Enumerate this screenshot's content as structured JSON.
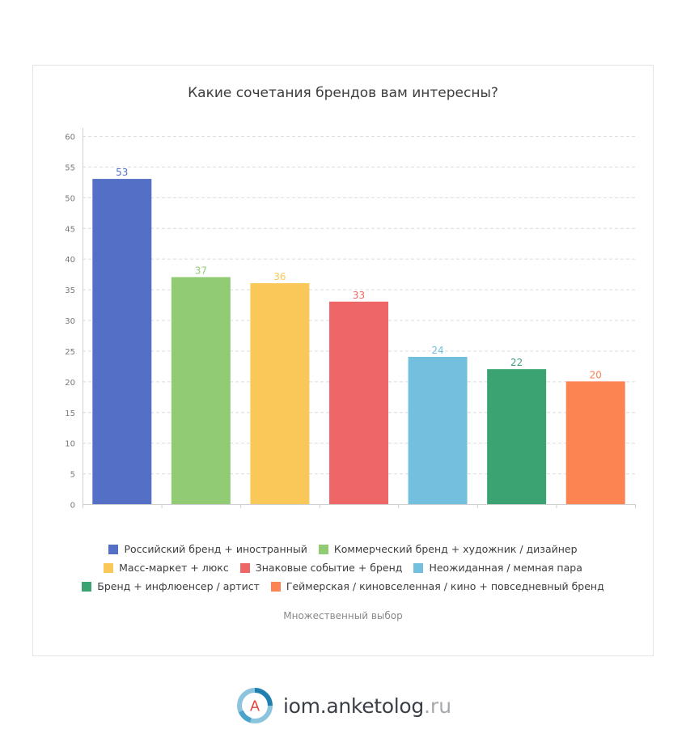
{
  "chart_data": {
    "type": "bar",
    "title": "Какие сочетания брендов вам интересны?",
    "note": "Множественный выбор",
    "ylim": [
      0,
      60
    ],
    "yticks": [
      "0",
      "5",
      "10",
      "15",
      "20",
      "25",
      "30",
      "35",
      "40",
      "45",
      "50",
      "55",
      "60"
    ],
    "grid": true,
    "legend_position": "bottom",
    "series": [
      {
        "name": "Российский бренд + иностранный",
        "value": 53,
        "color": "#5470c6"
      },
      {
        "name": "Коммерческий бренд + художник / дизайнер",
        "value": 37,
        "color": "#91cc75"
      },
      {
        "name": "Масс-маркет + люкс",
        "value": 36,
        "color": "#fac858"
      },
      {
        "name": "Знаковые событие + бренд",
        "value": 33,
        "color": "#ee6666"
      },
      {
        "name": "Неожиданная / мемная пара",
        "value": 24,
        "color": "#73c0de"
      },
      {
        "name": "Бренд + инфлюенсер / артист",
        "value": 22,
        "color": "#3ba272"
      },
      {
        "name": "Геймерская / киновселенная / кино + повседневный бренд",
        "value": 20,
        "color": "#fc8452"
      }
    ],
    "label_colors": [
      "#5470c6",
      "#91cc75",
      "#fac858",
      "#ee6666",
      "#73c0de",
      "#3ba272",
      "#fc8452"
    ]
  },
  "branding": {
    "site": "iom.anketolog",
    "tld": ".ru",
    "logo_letter": "A"
  }
}
